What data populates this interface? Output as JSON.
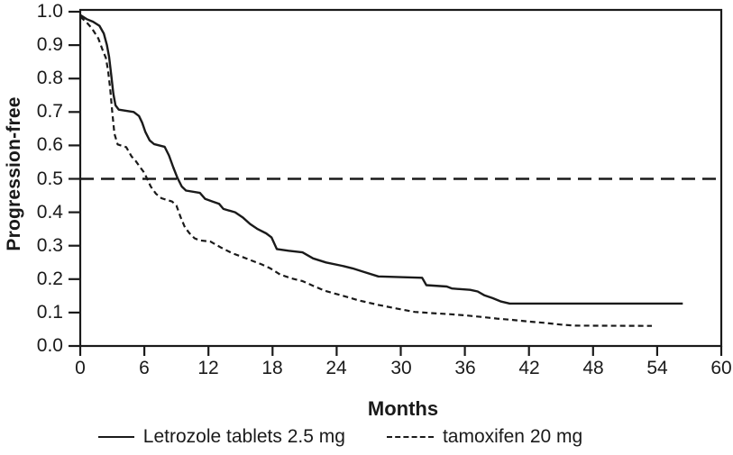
{
  "colors": {
    "line": "#1a1a1a",
    "text": "#1a1a1a",
    "background": "#ffffff"
  },
  "chart_data": {
    "type": "line",
    "subtype": "kaplan-meier-survival",
    "title": "",
    "xlabel": "Months",
    "ylabel": "Progression-free",
    "xlim": [
      0,
      60
    ],
    "ylim": [
      0.0,
      1.0
    ],
    "x_ticks": [
      0,
      6,
      12,
      18,
      24,
      30,
      36,
      42,
      48,
      54,
      60
    ],
    "y_ticks": [
      0.0,
      0.1,
      0.2,
      0.3,
      0.4,
      0.5,
      0.6,
      0.7,
      0.8,
      0.9,
      1.0
    ],
    "grid": false,
    "reference_line_y": 0.5,
    "reference_line_style": "long-dash",
    "legend_position": "bottom",
    "series": [
      {
        "name": "Letrozole tablets 2.5 mg",
        "line_style": "solid",
        "color": "#1a1a1a",
        "points": [
          [
            0,
            0.99
          ],
          [
            0.6,
            0.978
          ],
          [
            1.2,
            0.97
          ],
          [
            1.8,
            0.958
          ],
          [
            2.2,
            0.935
          ],
          [
            2.5,
            0.9
          ],
          [
            2.7,
            0.865
          ],
          [
            2.9,
            0.81
          ],
          [
            3.1,
            0.755
          ],
          [
            3.3,
            0.72
          ],
          [
            3.6,
            0.707
          ],
          [
            5.0,
            0.7
          ],
          [
            5.5,
            0.688
          ],
          [
            5.8,
            0.668
          ],
          [
            6.1,
            0.64
          ],
          [
            6.5,
            0.615
          ],
          [
            6.9,
            0.604
          ],
          [
            7.9,
            0.596
          ],
          [
            8.3,
            0.57
          ],
          [
            8.7,
            0.535
          ],
          [
            9.1,
            0.503
          ],
          [
            9.5,
            0.477
          ],
          [
            9.9,
            0.465
          ],
          [
            11.2,
            0.458
          ],
          [
            11.7,
            0.44
          ],
          [
            12.4,
            0.432
          ],
          [
            13.0,
            0.425
          ],
          [
            13.4,
            0.41
          ],
          [
            14.5,
            0.4
          ],
          [
            15.2,
            0.385
          ],
          [
            15.9,
            0.365
          ],
          [
            16.6,
            0.35
          ],
          [
            17.4,
            0.337
          ],
          [
            17.9,
            0.325
          ],
          [
            18.4,
            0.29
          ],
          [
            19.5,
            0.285
          ],
          [
            20.8,
            0.28
          ],
          [
            21.8,
            0.262
          ],
          [
            23.0,
            0.25
          ],
          [
            24.5,
            0.24
          ],
          [
            25.5,
            0.232
          ],
          [
            26.5,
            0.222
          ],
          [
            27.9,
            0.208
          ],
          [
            32.0,
            0.204
          ],
          [
            32.4,
            0.182
          ],
          [
            34.3,
            0.178
          ],
          [
            34.8,
            0.172
          ],
          [
            36.5,
            0.168
          ],
          [
            37.2,
            0.163
          ],
          [
            37.8,
            0.152
          ],
          [
            38.6,
            0.143
          ],
          [
            39.4,
            0.133
          ],
          [
            40.2,
            0.127
          ],
          [
            56.4,
            0.127
          ]
        ]
      },
      {
        "name": "tamoxifen 20 mg",
        "line_style": "dashed",
        "color": "#1a1a1a",
        "points": [
          [
            0,
            0.985
          ],
          [
            0.6,
            0.968
          ],
          [
            1.1,
            0.95
          ],
          [
            1.7,
            0.92
          ],
          [
            2.1,
            0.885
          ],
          [
            2.4,
            0.862
          ],
          [
            2.6,
            0.825
          ],
          [
            2.8,
            0.77
          ],
          [
            3.0,
            0.7
          ],
          [
            3.2,
            0.635
          ],
          [
            3.5,
            0.603
          ],
          [
            4.3,
            0.595
          ],
          [
            4.8,
            0.567
          ],
          [
            5.2,
            0.553
          ],
          [
            5.6,
            0.535
          ],
          [
            6.0,
            0.518
          ],
          [
            6.3,
            0.497
          ],
          [
            6.6,
            0.477
          ],
          [
            7.1,
            0.455
          ],
          [
            7.6,
            0.442
          ],
          [
            8.6,
            0.432
          ],
          [
            9.0,
            0.42
          ],
          [
            9.4,
            0.385
          ],
          [
            9.8,
            0.355
          ],
          [
            10.2,
            0.338
          ],
          [
            10.7,
            0.322
          ],
          [
            11.2,
            0.316
          ],
          [
            12.2,
            0.312
          ],
          [
            13.2,
            0.294
          ],
          [
            14.2,
            0.278
          ],
          [
            15.2,
            0.266
          ],
          [
            16.0,
            0.256
          ],
          [
            17.0,
            0.244
          ],
          [
            17.8,
            0.232
          ],
          [
            18.7,
            0.214
          ],
          [
            19.8,
            0.202
          ],
          [
            20.8,
            0.194
          ],
          [
            21.8,
            0.18
          ],
          [
            22.9,
            0.165
          ],
          [
            24.5,
            0.151
          ],
          [
            26.0,
            0.137
          ],
          [
            27.9,
            0.123
          ],
          [
            29.6,
            0.112
          ],
          [
            31.3,
            0.102
          ],
          [
            33.0,
            0.098
          ],
          [
            34.7,
            0.095
          ],
          [
            36.2,
            0.091
          ],
          [
            37.5,
            0.087
          ],
          [
            39.0,
            0.082
          ],
          [
            40.5,
            0.078
          ],
          [
            42.0,
            0.073
          ],
          [
            43.5,
            0.069
          ],
          [
            45.0,
            0.064
          ],
          [
            46.3,
            0.061
          ],
          [
            53.5,
            0.06
          ]
        ]
      }
    ]
  }
}
